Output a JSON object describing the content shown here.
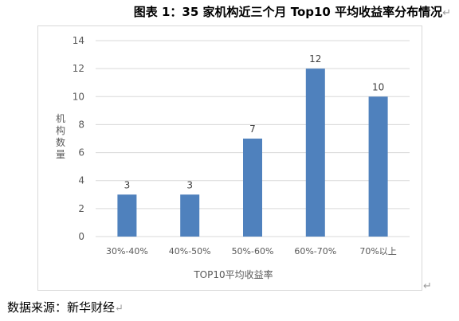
{
  "document": {
    "title": "图表 1：35 家机构近三个月 Top10 平均收益率分布情况",
    "source": "数据来源：新华财经",
    "paragraph_mark": "↵"
  },
  "colors": {
    "bar": "#4f81bd",
    "gridline": "#d9d9d9",
    "axis_text": "#595959",
    "frame": "#d9d9d9"
  },
  "chart_data": {
    "type": "bar",
    "categories": [
      "30%-40%",
      "40%-50%",
      "50%-60%",
      "60%-70%",
      "70%以上"
    ],
    "values": [
      3,
      3,
      7,
      12,
      10
    ],
    "data_labels": [
      "3",
      "3",
      "7",
      "12",
      "10"
    ],
    "title": "",
    "xlabel": "TOP10平均收益率",
    "ylabel": "机构数量",
    "ylim": [
      0,
      14
    ],
    "yticks": [
      0,
      2,
      4,
      6,
      8,
      10,
      12,
      14
    ],
    "ytick_labels": [
      "0",
      "2",
      "4",
      "6",
      "8",
      "10",
      "12",
      "14"
    ],
    "grid": true,
    "legend": "none"
  }
}
